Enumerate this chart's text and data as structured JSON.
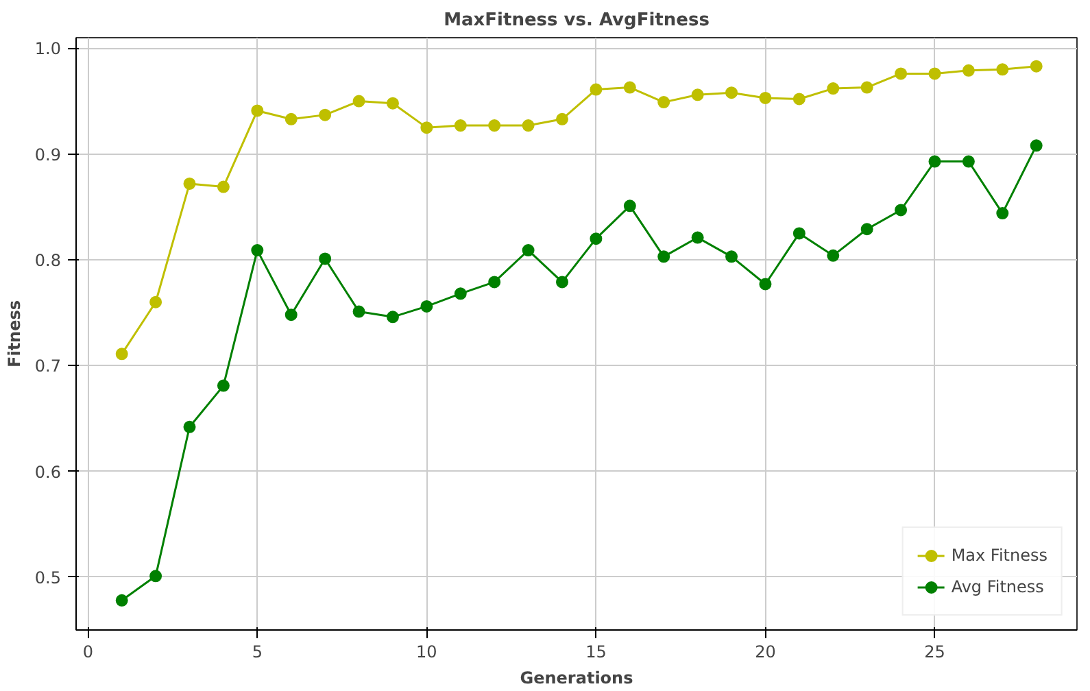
{
  "chart_data": {
    "type": "line",
    "title": "MaxFitness vs. AvgFitness",
    "xlabel": "Generations",
    "ylabel": "Fitness",
    "x": [
      1,
      2,
      3,
      4,
      5,
      6,
      7,
      8,
      9,
      10,
      11,
      12,
      13,
      14,
      15,
      16,
      17,
      18,
      19,
      20,
      21,
      22,
      23,
      24,
      25,
      26,
      27,
      28
    ],
    "series": [
      {
        "name": "Max Fitness",
        "color": "#bfbf00",
        "values": [
          0.711,
          0.76,
          0.872,
          0.869,
          0.941,
          0.933,
          0.937,
          0.95,
          0.948,
          0.925,
          0.927,
          0.927,
          0.927,
          0.933,
          0.961,
          0.963,
          0.949,
          0.956,
          0.958,
          0.953,
          0.952,
          0.962,
          0.963,
          0.976,
          0.976,
          0.979,
          0.98,
          0.983
        ]
      },
      {
        "name": "Avg Fitness",
        "color": "#008000",
        "values": [
          0.478,
          0.501,
          0.642,
          0.681,
          0.809,
          0.748,
          0.801,
          0.751,
          0.746,
          0.756,
          0.768,
          0.779,
          0.809,
          0.779,
          0.82,
          0.851,
          0.803,
          0.821,
          0.803,
          0.777,
          0.825,
          0.804,
          0.829,
          0.847,
          0.893,
          0.893,
          0.844,
          0.908
        ]
      }
    ],
    "xlim": [
      -0.35,
      29.2
    ],
    "ylim": [
      0.45,
      1.01
    ],
    "xticks": [
      0,
      5,
      10,
      15,
      20,
      25
    ],
    "yticks": [
      0.5,
      0.6,
      0.7,
      0.8,
      0.9,
      {
        "value": 1.0,
        "label": "1.0"
      }
    ],
    "grid": true,
    "legend": "bottom right",
    "marker": "circle",
    "line_style": "solid"
  }
}
